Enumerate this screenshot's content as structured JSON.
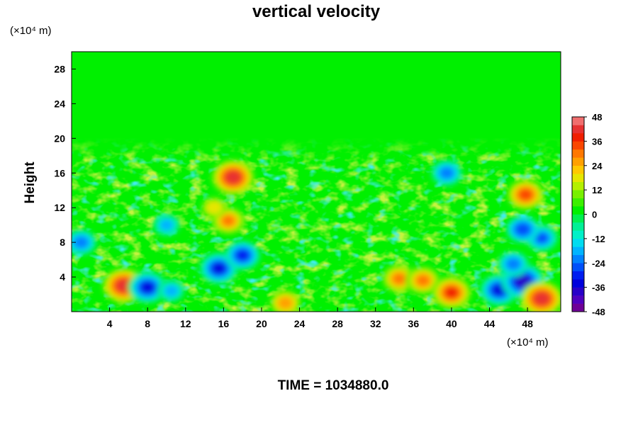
{
  "chart_data": {
    "type": "heatmap",
    "title": "vertical velocity",
    "ylabel": "Height",
    "xunit": "(×10⁴ m)",
    "yunit": "(×10⁴ m)",
    "time_label": "TIME = 1034880.0",
    "xlim": [
      0,
      51.5
    ],
    "ylim": [
      0,
      30
    ],
    "x_ticks": [
      "4",
      "8",
      "12",
      "16",
      "20",
      "24",
      "28",
      "32",
      "36",
      "40",
      "44",
      "48"
    ],
    "y_ticks": [
      "4",
      "8",
      "12",
      "16",
      "20",
      "24",
      "28"
    ],
    "colorbar": {
      "min": -48,
      "max": 48,
      "step": 4,
      "ticks": [
        "48",
        "36",
        "24",
        "12",
        "0",
        "-12",
        "-24",
        "-36",
        "-48"
      ]
    },
    "features": [
      {
        "x": 5.5,
        "y": 3.0,
        "value": 40
      },
      {
        "x": 8.0,
        "y": 2.8,
        "value": -36
      },
      {
        "x": 10.5,
        "y": 2.4,
        "value": -20
      },
      {
        "x": 15.5,
        "y": 5.0,
        "value": -36
      },
      {
        "x": 18.0,
        "y": 6.5,
        "value": -30
      },
      {
        "x": 17.0,
        "y": 15.5,
        "value": 40
      },
      {
        "x": 16.5,
        "y": 10.5,
        "value": 28
      },
      {
        "x": 15.0,
        "y": 12.0,
        "value": 16
      },
      {
        "x": 22.5,
        "y": 1.0,
        "value": 24
      },
      {
        "x": 34.5,
        "y": 3.8,
        "value": 30
      },
      {
        "x": 37.0,
        "y": 3.6,
        "value": 30
      },
      {
        "x": 40.0,
        "y": 2.2,
        "value": 38
      },
      {
        "x": 45.0,
        "y": 2.5,
        "value": -36
      },
      {
        "x": 47.5,
        "y": 3.5,
        "value": -40
      },
      {
        "x": 46.5,
        "y": 5.5,
        "value": -24
      },
      {
        "x": 49.5,
        "y": 1.5,
        "value": 40
      },
      {
        "x": 47.8,
        "y": 13.5,
        "value": 32
      },
      {
        "x": 49.5,
        "y": 8.5,
        "value": -28
      },
      {
        "x": 47.5,
        "y": 9.5,
        "value": -26
      },
      {
        "x": 39.5,
        "y": 16.0,
        "value": -24
      },
      {
        "x": 1.0,
        "y": 8.0,
        "value": -24
      },
      {
        "x": 10.0,
        "y": 10.0,
        "value": -20
      }
    ]
  }
}
